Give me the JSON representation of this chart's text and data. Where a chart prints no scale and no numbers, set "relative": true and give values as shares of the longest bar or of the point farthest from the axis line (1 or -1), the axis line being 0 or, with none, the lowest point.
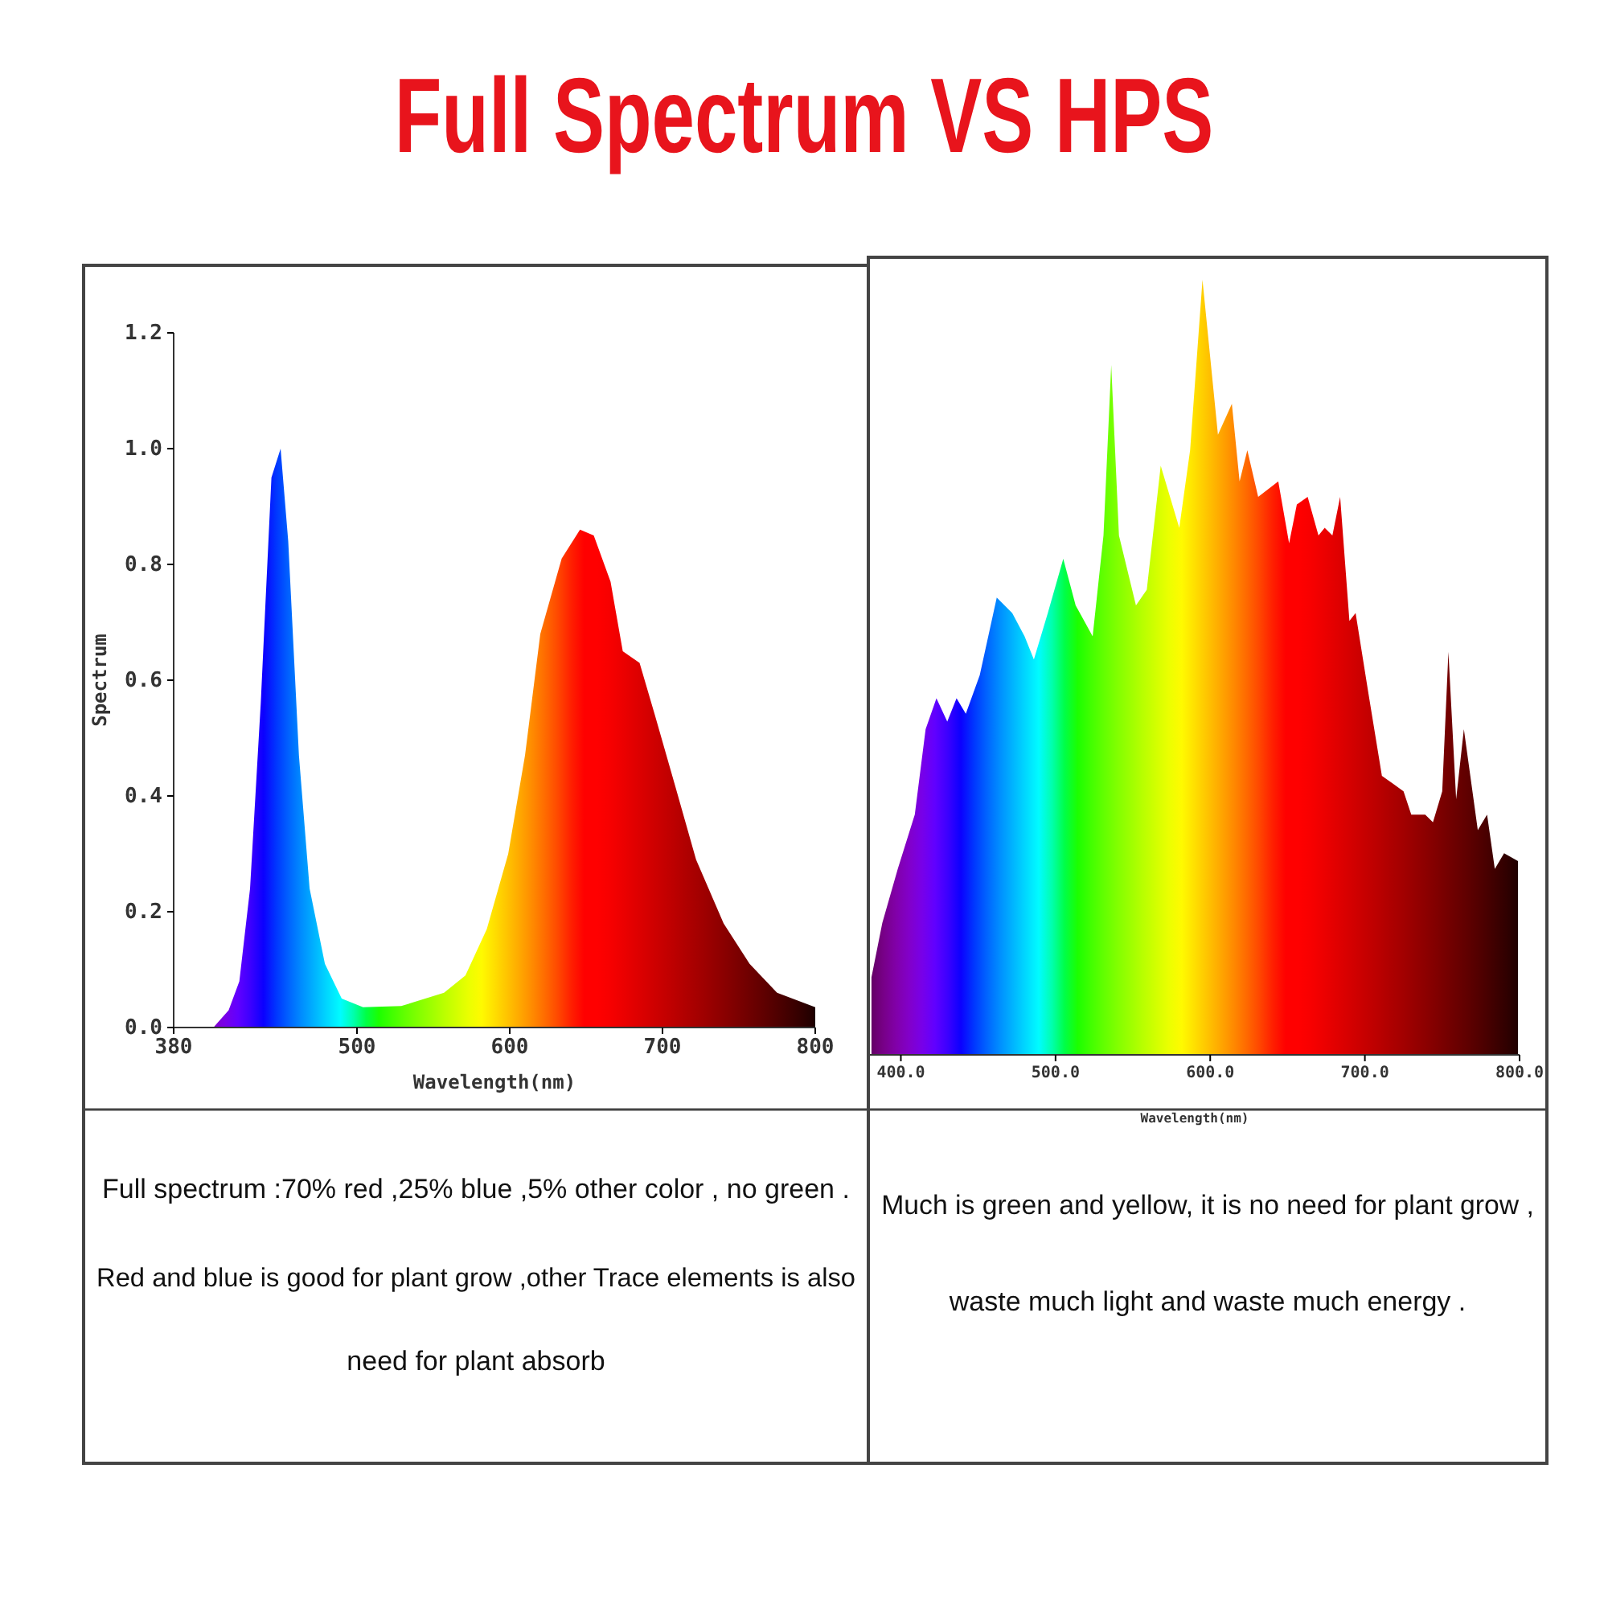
{
  "chart_data": [
    {
      "type": "area",
      "title": "Full Spectrum VS HPS",
      "xlabel": "Wavelength(nm)",
      "ylabel": "Spectrum",
      "xlim": [
        380,
        800
      ],
      "xticks": [
        380,
        500,
        600,
        700,
        800
      ],
      "ylim": [
        0,
        1.2
      ],
      "yticks": [
        {
          "value": 0,
          "label": "0.0"
        },
        0.2,
        0.4,
        0.6,
        0.8,
        {
          "value": 1,
          "label": "1.0"
        },
        1.2
      ],
      "series": [
        {
          "x": [
            380,
            406,
            416,
            423,
            430,
            437,
            444,
            450,
            455,
            462,
            469,
            479,
            490,
            504,
            529,
            557,
            571,
            585,
            599,
            610,
            620,
            634,
            646,
            655,
            666,
            674,
            685,
            695,
            708,
            722,
            740,
            757,
            775,
            800
          ],
          "values": [
            0,
            0,
            0.03,
            0.08,
            0.24,
            0.56,
            0.95,
            1.0,
            0.84,
            0.47,
            0.24,
            0.11,
            0.05,
            0.035,
            0.037,
            0.06,
            0.09,
            0.17,
            0.3,
            0.47,
            0.68,
            0.81,
            0.86,
            0.85,
            0.77,
            0.65,
            0.63,
            0.54,
            0.42,
            0.29,
            0.18,
            0.11,
            0.06,
            0.035
          ]
        }
      ],
      "annotations": [
        "Full spectrum :70% red ,25% blue ,5% other color , no green .",
        "Red and blue is good for plant grow ,other Trace elements is also",
        "need for plant absorb"
      ]
    },
    {
      "type": "area",
      "relative": true,
      "xlabel": "Wavelength(nm)",
      "xlim": [
        380,
        800
      ],
      "xticks": [
        {
          "value": 400,
          "label": "400.0"
        },
        {
          "value": 500,
          "label": "500.0"
        },
        {
          "value": 600,
          "label": "600.0"
        },
        {
          "value": 700,
          "label": "700.0"
        },
        {
          "value": 800,
          "label": "800.0"
        }
      ],
      "tick_labels": "x",
      "series": [
        {
          "x": [
            381,
            388,
            398,
            409,
            416,
            423,
            430,
            436,
            442,
            451,
            462,
            472,
            480,
            486,
            495,
            505,
            513,
            524,
            531,
            536,
            541,
            552,
            559,
            568,
            580,
            587,
            595,
            605,
            614,
            619,
            624,
            631,
            644,
            651,
            656,
            663,
            670,
            674,
            679,
            684,
            690,
            694,
            702,
            711,
            718,
            725,
            730,
            739,
            744,
            750,
            754,
            759,
            764,
            773,
            779,
            784,
            790,
            799
          ],
          "values": [
            0.1,
            0.17,
            0.24,
            0.31,
            0.42,
            0.46,
            0.43,
            0.46,
            0.44,
            0.49,
            0.59,
            0.57,
            0.54,
            0.51,
            0.57,
            0.64,
            0.58,
            0.54,
            0.67,
            0.89,
            0.67,
            0.58,
            0.6,
            0.76,
            0.68,
            0.78,
            1.0,
            0.8,
            0.84,
            0.74,
            0.78,
            0.72,
            0.74,
            0.66,
            0.71,
            0.72,
            0.67,
            0.68,
            0.67,
            0.72,
            0.56,
            0.57,
            0.47,
            0.36,
            0.35,
            0.34,
            0.31,
            0.31,
            0.3,
            0.34,
            0.52,
            0.33,
            0.42,
            0.29,
            0.31,
            0.24,
            0.26,
            0.25
          ]
        }
      ],
      "annotations": [
        "Much is green and yellow, it is no need for plant grow ,",
        "waste much light and waste much energy ."
      ]
    }
  ]
}
